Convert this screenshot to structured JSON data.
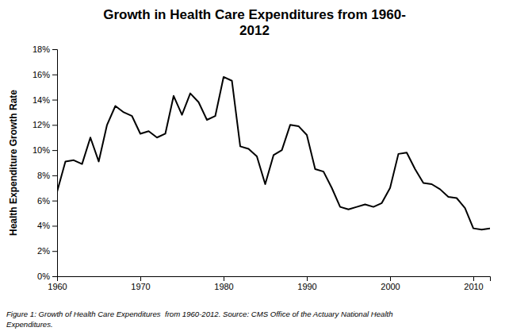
{
  "chart_data": {
    "type": "line",
    "title": "Growth in Health Care Expenditures from 1960-\n2012",
    "ylabel": "Health Expenditure Growth Rate",
    "caption": "Figure 1: Growth of Health Care Expenditures  from 1960-2012. Source: CMS Office of the Actuary National Health\nExpenditures.",
    "x": [
      1960,
      1961,
      1962,
      1963,
      1964,
      1965,
      1966,
      1967,
      1968,
      1969,
      1970,
      1971,
      1972,
      1973,
      1974,
      1975,
      1976,
      1977,
      1978,
      1979,
      1980,
      1981,
      1982,
      1983,
      1984,
      1985,
      1986,
      1987,
      1988,
      1989,
      1990,
      1991,
      1992,
      1993,
      1994,
      1995,
      1996,
      1997,
      1998,
      1999,
      2000,
      2001,
      2002,
      2003,
      2004,
      2005,
      2006,
      2007,
      2008,
      2009,
      2010,
      2011,
      2012
    ],
    "values": [
      0.067,
      0.091,
      0.092,
      0.089,
      0.11,
      0.091,
      0.12,
      0.135,
      0.13,
      0.127,
      0.113,
      0.115,
      0.11,
      0.113,
      0.143,
      0.128,
      0.145,
      0.138,
      0.124,
      0.127,
      0.158,
      0.155,
      0.103,
      0.101,
      0.095,
      0.073,
      0.096,
      0.1,
      0.12,
      0.119,
      0.112,
      0.085,
      0.083,
      0.07,
      0.055,
      0.053,
      0.055,
      0.057,
      0.055,
      0.058,
      0.07,
      0.097,
      0.098,
      0.085,
      0.074,
      0.073,
      0.069,
      0.063,
      0.062,
      0.054,
      0.038,
      0.037,
      0.038
    ],
    "color": "#000000",
    "xlim": [
      1960,
      2012
    ],
    "xticks": [
      1960,
      1970,
      1980,
      1990,
      2000,
      2010
    ],
    "ylim": [
      0,
      0.18
    ],
    "yticks": [
      {
        "value": 0,
        "label": "0%"
      },
      {
        "value": 0.02,
        "label": "2%"
      },
      {
        "value": 0.04,
        "label": "4%"
      },
      {
        "value": 0.06,
        "label": "6%"
      },
      {
        "value": 0.08,
        "label": "8%"
      },
      {
        "value": 0.1,
        "label": "10%"
      },
      {
        "value": 0.12,
        "label": "12%"
      },
      {
        "value": 0.14,
        "label": "14%"
      },
      {
        "value": 0.16,
        "label": "16%"
      },
      {
        "value": 0.18,
        "label": "18%"
      }
    ],
    "grid": false
  }
}
